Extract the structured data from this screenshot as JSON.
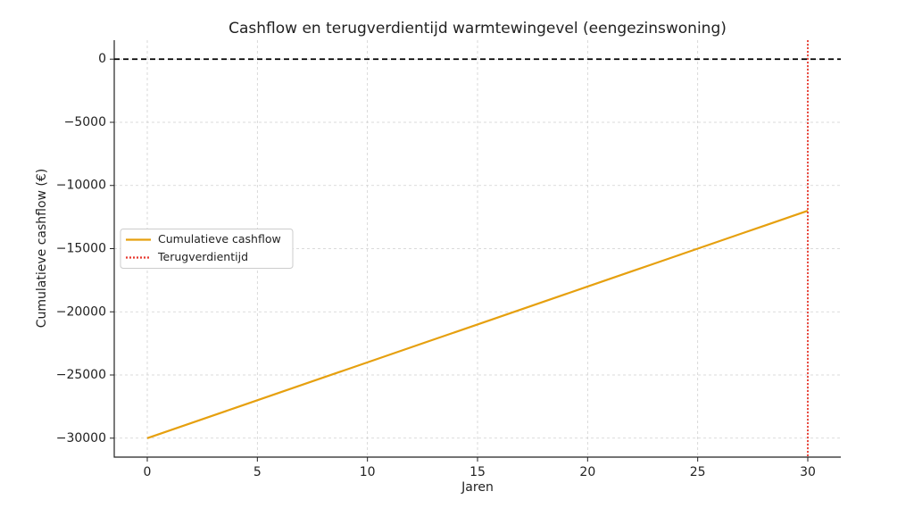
{
  "chart_data": {
    "type": "line",
    "title": "Cashflow en terugverdientijd warmtewingevel (eengezinswoning)",
    "x_label": "Jaren",
    "y_label": "Cumulatieve cashflow (€)",
    "x": [
      0,
      1,
      2,
      3,
      4,
      5,
      6,
      7,
      8,
      9,
      10,
      11,
      12,
      13,
      14,
      15,
      16,
      17,
      18,
      19,
      20,
      21,
      22,
      23,
      24,
      25,
      26,
      27,
      28,
      29,
      30
    ],
    "series": [
      {
        "name": "Cumulatieve cashflow",
        "color": "#e6a00f",
        "values": [
          -30000,
          -29400,
          -28800,
          -28200,
          -27600,
          -27000,
          -26400,
          -25800,
          -25200,
          -24600,
          -24000,
          -23400,
          -22800,
          -22200,
          -21600,
          -21000,
          -20400,
          -19800,
          -19200,
          -18600,
          -18000,
          -17400,
          -16800,
          -16200,
          -15600,
          -15000,
          -14400,
          -13800,
          -13200,
          -12600,
          -12000
        ]
      }
    ],
    "hlines": [
      {
        "y": 0,
        "color": "#000000",
        "style": "dashed"
      }
    ],
    "vlines": [
      {
        "name": "Terugverdientijd",
        "x": 30,
        "color": "#e8382e",
        "style": "dotted"
      }
    ],
    "xlim": [
      -1.5,
      31.5
    ],
    "ylim": [
      -31500,
      1500
    ],
    "xticks": [
      0,
      5,
      10,
      15,
      20,
      25,
      30
    ],
    "yticks": [
      0,
      {
        "value": -5000,
        "label": "−5000"
      },
      {
        "value": -10000,
        "label": "−10000"
      },
      {
        "value": -15000,
        "label": "−15000"
      },
      {
        "value": -20000,
        "label": "−20000"
      },
      {
        "value": -25000,
        "label": "−25000"
      },
      {
        "value": -30000,
        "label": "−30000"
      }
    ],
    "grid": true,
    "legend": "center left"
  }
}
